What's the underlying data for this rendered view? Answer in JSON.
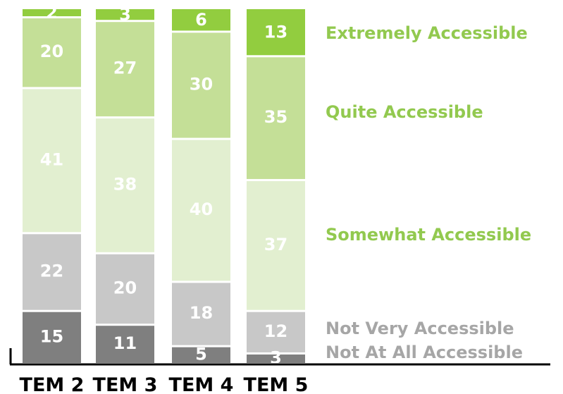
{
  "chart_data": {
    "type": "bar",
    "stacked": true,
    "categories": [
      "TEM 2",
      "TEM 3",
      "TEM 4",
      "TEM 5"
    ],
    "series": [
      {
        "name": "Not At All Accessible",
        "values": [
          15,
          11,
          5,
          3
        ],
        "color": "#7f7f7f",
        "legend_color": "#a6a6a6"
      },
      {
        "name": "Not Very Accessible",
        "values": [
          22,
          20,
          18,
          12
        ],
        "color": "#c8c8c8",
        "legend_color": "#a6a6a6"
      },
      {
        "name": "Somewhat Accessible",
        "values": [
          41,
          38,
          40,
          37
        ],
        "color": "#e2efd0",
        "legend_color": "#92c94f"
      },
      {
        "name": "Quite Accessible",
        "values": [
          20,
          27,
          30,
          35
        ],
        "color": "#c4df97",
        "legend_color": "#92c94f"
      },
      {
        "name": "Extremely Accessible",
        "values": [
          2,
          3,
          6,
          13
        ],
        "color": "#92cd3f",
        "legend_color": "#92c94f"
      }
    ],
    "legend_position": "right",
    "grid": false
  }
}
